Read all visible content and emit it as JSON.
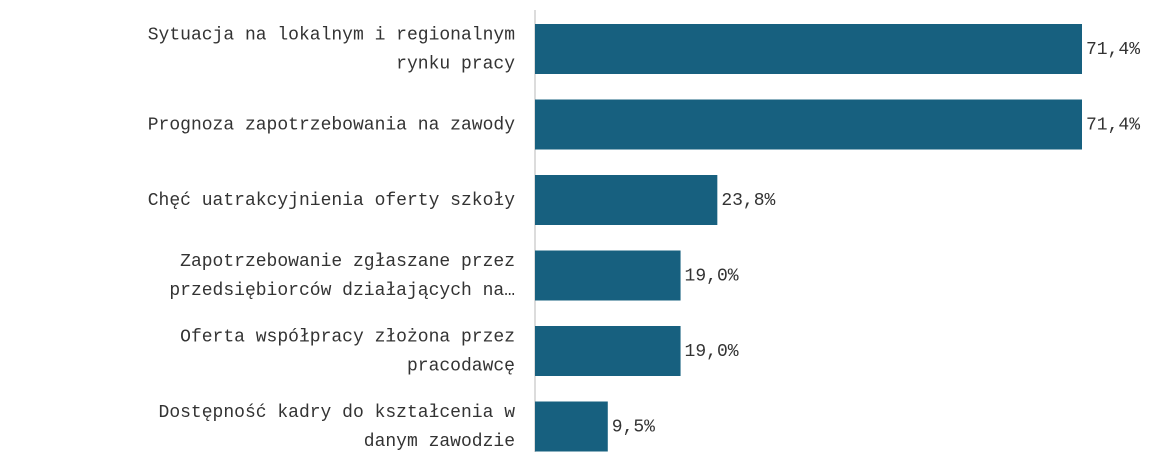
{
  "chart_data": {
    "type": "bar",
    "orientation": "horizontal",
    "categories": [
      [
        "Sytuacja na lokalnym i regionalnym",
        "rynku pracy"
      ],
      [
        "Prognoza zapotrzebowania na zawody"
      ],
      [
        "Chęć uatrakcyjnienia oferty szkoły"
      ],
      [
        "Zapotrzebowanie zgłaszane przez",
        "przedsiębiorców działających na…"
      ],
      [
        "Oferta współpracy złożona przez",
        "pracodawcę"
      ],
      [
        "Dostępność kadry do kształcenia w",
        "danym zawodzie"
      ]
    ],
    "values": [
      71.4,
      71.4,
      23.8,
      19.0,
      19.0,
      9.5
    ],
    "value_labels": [
      "71,4%",
      "71,4%",
      "23,8%",
      "19,0%",
      "19,0%",
      "9,5%"
    ],
    "color": "#17607f"
  }
}
